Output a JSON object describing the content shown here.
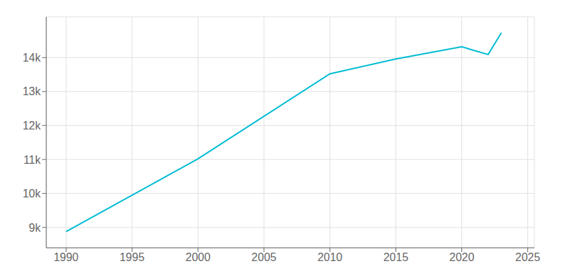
{
  "chart_data": {
    "type": "line",
    "x": [
      1990,
      2000,
      2010,
      2015,
      2020,
      2021,
      2022,
      2023
    ],
    "values": [
      8874,
      11020,
      13520,
      13960,
      14320,
      14200,
      14090,
      14730
    ],
    "color": "#00BCD4",
    "xlim": [
      1988.5,
      2025.5
    ],
    "xticks": [
      1990,
      1995,
      2000,
      2005,
      2010,
      2015,
      2020,
      2025
    ],
    "ylim": [
      8400,
      15200
    ],
    "yticks": [
      {
        "value": 9000,
        "label": "9k"
      },
      {
        "value": 10000,
        "label": "10k"
      },
      {
        "value": 11000,
        "label": "11k"
      },
      {
        "value": 12000,
        "label": "12k"
      },
      {
        "value": 13000,
        "label": "13k"
      },
      {
        "value": 14000,
        "label": "14k"
      }
    ],
    "grid": true
  }
}
